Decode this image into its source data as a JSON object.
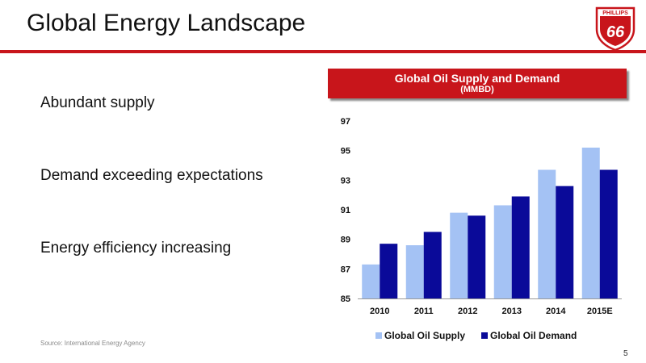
{
  "slide": {
    "title": "Global Energy Landscape",
    "logo_text": "PHILLIPS",
    "logo_number": "66",
    "page_number": "5",
    "source": "Source: International Energy Agency"
  },
  "bullets": [
    "Abundant supply",
    "Demand exceeding expectations",
    "Energy efficiency increasing"
  ],
  "colors": {
    "accent": "#c8151b",
    "supply": "#a4c2f4",
    "demand": "#0a0a99"
  },
  "chart_data": {
    "type": "bar",
    "title": "Global Oil Supply and Demand",
    "subtitle": "(MMBD)",
    "categories": [
      "2010",
      "2011",
      "2012",
      "2013",
      "2014",
      "2015E"
    ],
    "series": [
      {
        "name": "Global Oil Supply",
        "values": [
          87.3,
          88.6,
          90.8,
          91.3,
          93.7,
          95.2
        ]
      },
      {
        "name": "Global Oil Demand",
        "values": [
          88.7,
          89.5,
          90.6,
          91.9,
          92.6,
          93.7
        ]
      }
    ],
    "ylim": [
      85,
      97
    ],
    "yticks": [
      85,
      87,
      89,
      91,
      93,
      95,
      97
    ],
    "grid": false,
    "legend_position": "bottom"
  }
}
